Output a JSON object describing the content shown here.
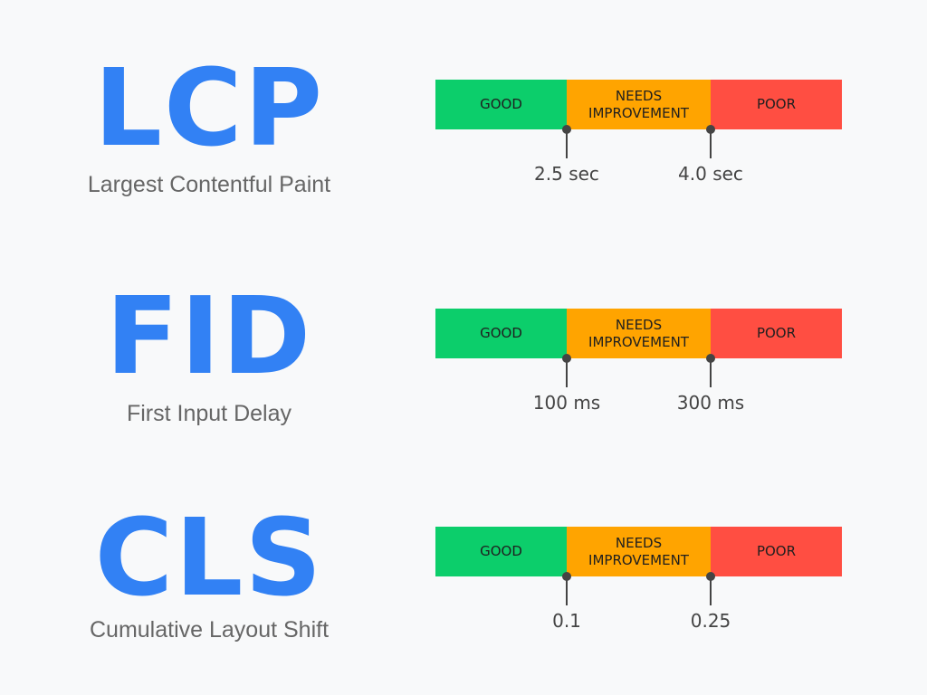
{
  "colors": {
    "good": "#0cce6b",
    "needs_improvement": "#ffa400",
    "poor": "#ff4e42",
    "title": "#3281f4"
  },
  "metrics": [
    {
      "abbr": "LCP",
      "name": "Largest Contentful Paint",
      "good": "GOOD",
      "needs": "NEEDS IMPROVEMENT",
      "poor": "POOR",
      "threshold1": "2.5 sec",
      "threshold2": "4.0 sec"
    },
    {
      "abbr": "FID",
      "name": "First Input Delay",
      "good": "GOOD",
      "needs": "NEEDS IMPROVEMENT",
      "poor": "POOR",
      "threshold1": "100 ms",
      "threshold2": "300 ms"
    },
    {
      "abbr": "CLS",
      "name": "Cumulative Layout Shift",
      "good": "GOOD",
      "needs": "NEEDS IMPROVEMENT",
      "poor": "POOR",
      "threshold1": "0.1",
      "threshold2": "0.25"
    }
  ]
}
